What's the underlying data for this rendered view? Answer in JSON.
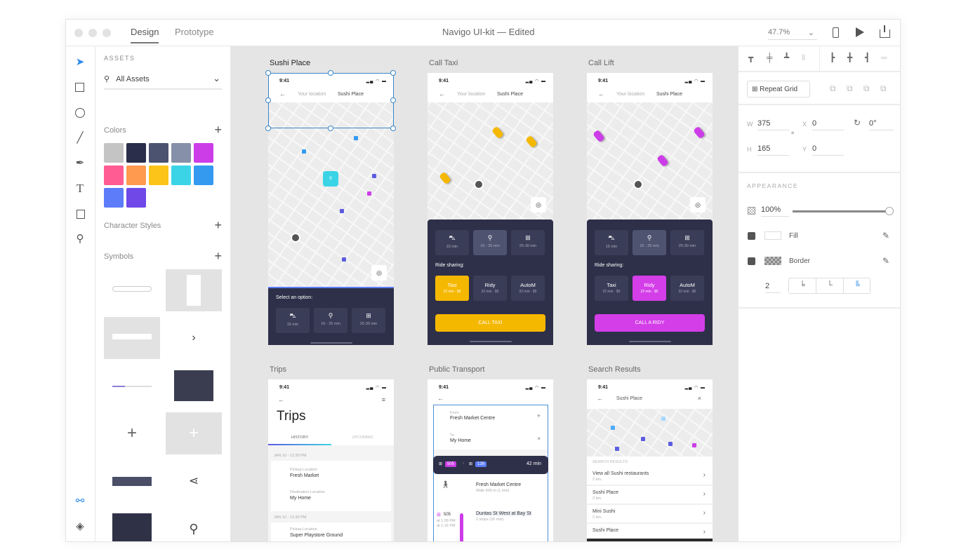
{
  "window": {
    "tabs": [
      "Design",
      "Prototype"
    ],
    "title": "Navigo UI-kit",
    "separator": "—",
    "status": "Edited",
    "zoom": "47.7%"
  },
  "assets": {
    "heading": "ASSETS",
    "filter": "All Assets",
    "colors_label": "Colors",
    "colors": [
      "#c4c4c4",
      "#2b2e4a",
      "#4b5371",
      "#8690a8",
      "#cc3de8",
      "#ff5c93",
      "#ff9a4f",
      "#fcc419",
      "#3bd4e6",
      "#339af0",
      "#5c7cfa",
      "#7048e8"
    ],
    "character_styles_label": "Character Styles",
    "symbols_label": "Symbols"
  },
  "right_panel": {
    "repeat_grid": "Repeat Grid",
    "w_label": "W",
    "w": "375",
    "h_label": "H",
    "h": "165",
    "x_label": "X",
    "x": "0",
    "y_label": "Y",
    "y": "0",
    "rotation": "0°",
    "appearance": "APPEARANCE",
    "opacity": "100%",
    "opacity_value": 1.0,
    "fill": "Fill",
    "border": "Border",
    "border_width": "2"
  },
  "artboards": {
    "sushi": {
      "title": "Sushi Place",
      "time": "9:41",
      "from": "Your location",
      "to": "Sushi Place",
      "sheet_title": "Select an option:",
      "options": [
        "15 min",
        "16 - 25 min",
        "25-30 min"
      ]
    },
    "taxi": {
      "title": "Call Taxi",
      "time": "9:41",
      "from": "Your location",
      "to": "Sushi Place",
      "options": [
        "15 min",
        "16 - 25 min",
        "25-30 min"
      ],
      "ride_title": "Ride sharing:",
      "rides": [
        {
          "name": "Taxi",
          "info": "22 min · $5"
        },
        {
          "name": "Ridy",
          "info": "22 min · $5"
        },
        {
          "name": "AutoM",
          "info": "22 min · $5"
        }
      ],
      "button": "CALL TAXI",
      "accent": "#f5b800"
    },
    "lift": {
      "title": "Call Lift",
      "time": "9:41",
      "from": "Your location",
      "to": "Sushi Place",
      "options": [
        "15 min",
        "16 - 25 min",
        "25-30 min"
      ],
      "ride_title": "Ride sharing:",
      "rides": [
        {
          "name": "Taxi",
          "info": "22 min · $5"
        },
        {
          "name": "Ridy",
          "info": "22 min · $5"
        },
        {
          "name": "AutoM",
          "info": "22 min · $5"
        }
      ],
      "button": "CALL A RIDY",
      "accent": "#d43ee8"
    },
    "trips": {
      "title": "Trips",
      "time": "9:41",
      "heading": "Trips",
      "tabs": [
        "HISTORY",
        "UPCOMING"
      ],
      "groups": [
        {
          "date": "JAN 10 - 12:30 PM",
          "pickup_label": "Pickup Location",
          "pickup": "Fresh Market",
          "dest_label": "Destination Location",
          "dest": "My Home"
        },
        {
          "date": "JAN 10 - 12:30 PM",
          "pickup_label": "Pickup Location",
          "pickup": "Super Playstore Ground"
        }
      ]
    },
    "transport": {
      "title": "Public Transport",
      "time": "9:41",
      "from_label": "From",
      "from": "Fresh Market Centre",
      "to_label": "To",
      "to": "My Home",
      "routes": [
        "505",
        "126"
      ],
      "duration": "42 min",
      "step1": {
        "title": "Fresh Market Centre",
        "sub": "Walk 400 m (1 min)"
      },
      "step2": {
        "route": "505",
        "dep": "at 1:09 PM",
        "arr": "at 1:16 PM",
        "title": "Duntas St West at Bay St",
        "sub": "2 stops (20 min)"
      }
    },
    "search": {
      "title": "Search Results",
      "time": "9:41",
      "query": "Sushi Place",
      "section": "SEARCH RESULTS",
      "results": [
        {
          "name": "View all Sushi restaurants",
          "dist": "2 km."
        },
        {
          "name": "Sushi Place",
          "dist": "2 km."
        },
        {
          "name": "Mini Sushi",
          "dist": "2 km."
        },
        {
          "name": "Sushi Place",
          "dist": ""
        }
      ]
    }
  }
}
